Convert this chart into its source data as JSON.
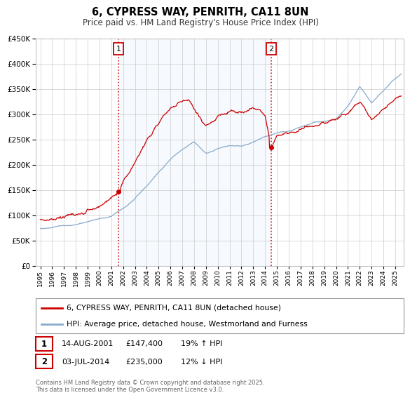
{
  "title": "6, CYPRESS WAY, PENRITH, CA11 8UN",
  "subtitle": "Price paid vs. HM Land Registry's House Price Index (HPI)",
  "legend1": "6, CYPRESS WAY, PENRITH, CA11 8UN (detached house)",
  "legend2": "HPI: Average price, detached house, Westmorland and Furness",
  "ann1_label": "1",
  "ann1_date": "14-AUG-2001",
  "ann1_price": "£147,400",
  "ann1_hpi": "19% ↑ HPI",
  "ann2_label": "2",
  "ann2_date": "03-JUL-2014",
  "ann2_price": "£235,000",
  "ann2_hpi": "12% ↓ HPI",
  "footer": "Contains HM Land Registry data © Crown copyright and database right 2025.\nThis data is licensed under the Open Government Licence v3.0.",
  "red_color": "#cc0000",
  "blue_color": "#88aacc",
  "background_color": "#ffffff",
  "grid_color": "#cccccc",
  "ylim": [
    0,
    450000
  ],
  "yticks": [
    0,
    50000,
    100000,
    150000,
    200000,
    250000,
    300000,
    350000,
    400000,
    450000
  ],
  "sale1_year": 2001.617,
  "sale1_value": 147400,
  "sale2_year": 2014.503,
  "sale2_value": 235000,
  "xmin": 1994.6,
  "xmax": 2025.7
}
